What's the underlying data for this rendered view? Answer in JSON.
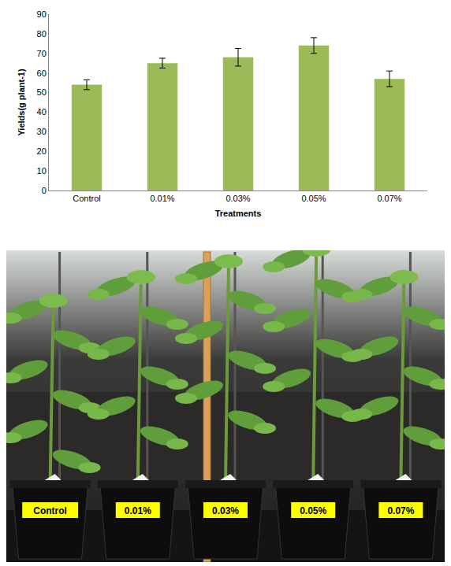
{
  "chart_data": {
    "type": "bar",
    "x_label": "Treatments",
    "y_label": "Yields(g plant-1)",
    "categories": [
      "Control",
      "0.01%",
      "0.03%",
      "0.05%",
      "0.07%"
    ],
    "values": [
      54,
      65,
      68,
      74,
      57
    ],
    "errors": [
      2.5,
      2.5,
      4.5,
      4,
      4
    ],
    "color": "#9bbb59",
    "ylim": [
      0,
      90
    ],
    "yticks": [
      0,
      10,
      20,
      30,
      40,
      50,
      60,
      70,
      80,
      90
    ],
    "grid": false
  },
  "photo": {
    "pot_labels": [
      "Control",
      "0.01%",
      "0.03%",
      "0.05%",
      "0.07%"
    ]
  }
}
